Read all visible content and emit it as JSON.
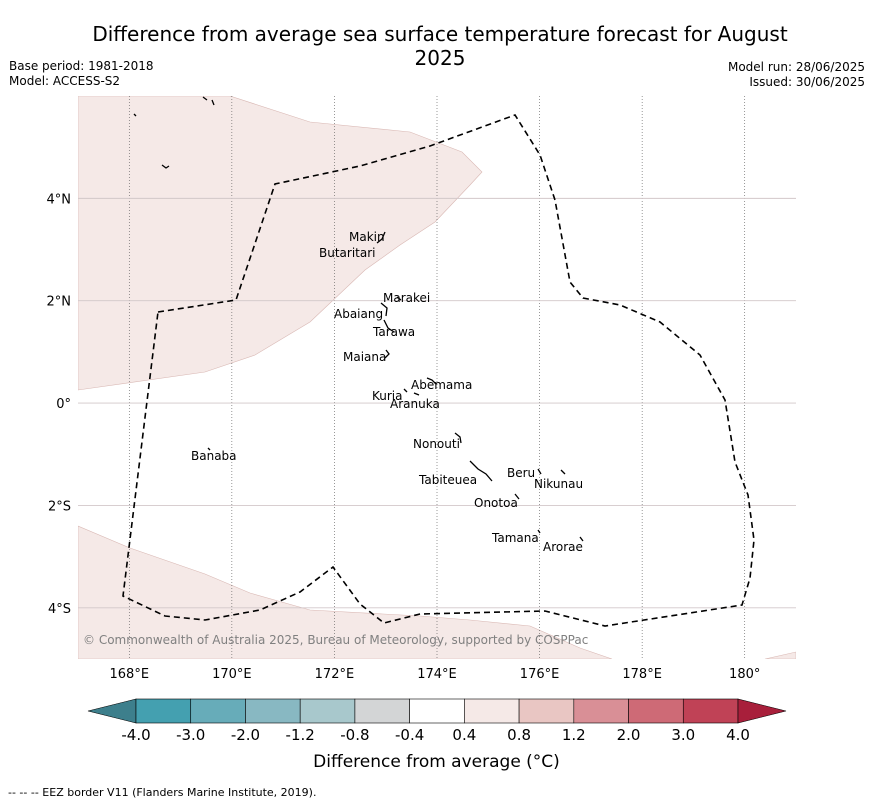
{
  "title": "Difference from average sea surface temperature forecast for August 2025",
  "base_period": "Base period: 1981-2018",
  "model": "Model: ACCESS-S2",
  "model_run": "Model run: 28/06/2025",
  "issued": "Issued: 30/06/2025",
  "copyright": "© Commonwealth of Australia 2025, Bureau of Meteorology, supported by COSPPac",
  "footer": "--  --  -- EEZ border V11 (Flanders Marine Institute, 2019).",
  "map": {
    "lon_range": [
      167,
      181
    ],
    "lat_range": [
      -5,
      6
    ],
    "lon_ticks": [
      {
        "lon": 168,
        "label": "168°E"
      },
      {
        "lon": 170,
        "label": "170°E"
      },
      {
        "lon": 172,
        "label": "172°E"
      },
      {
        "lon": 174,
        "label": "174°E"
      },
      {
        "lon": 176,
        "label": "176°E"
      },
      {
        "lon": 178,
        "label": "178°E"
      },
      {
        "lon": 180,
        "label": "180°"
      }
    ],
    "lat_ticks": [
      {
        "lat": 4,
        "label": "4°N"
      },
      {
        "lat": 2,
        "label": "2°N"
      },
      {
        "lat": 0,
        "label": "0°"
      },
      {
        "lat": -2,
        "label": "2°S"
      },
      {
        "lat": -4,
        "label": "4°S"
      }
    ],
    "anomaly_fill_color": "#f5e9e7",
    "anomaly_class": "0.4 to 0.8",
    "islands": [
      {
        "name": "Makin",
        "lon": 172.9,
        "lat": 3.2
      },
      {
        "name": "Butaritari",
        "lon": 172.8,
        "lat": 3.1
      },
      {
        "name": "Marakei",
        "lon": 173.3,
        "lat": 2.0
      },
      {
        "name": "Abaiang",
        "lon": 172.9,
        "lat": 1.8
      },
      {
        "name": "Tarawa",
        "lon": 173.0,
        "lat": 1.4
      },
      {
        "name": "Maiana",
        "lon": 173.0,
        "lat": 1.0
      },
      {
        "name": "Abemama",
        "lon": 173.9,
        "lat": 0.4
      },
      {
        "name": "Kuria",
        "lon": 173.4,
        "lat": 0.2
      },
      {
        "name": "Aranuka",
        "lon": 173.6,
        "lat": 0.2
      },
      {
        "name": "Banaba",
        "lon": 169.5,
        "lat": -0.9
      },
      {
        "name": "Nonouti",
        "lon": 174.4,
        "lat": -0.7
      },
      {
        "name": "Tabiteuea",
        "lon": 174.8,
        "lat": -1.3
      },
      {
        "name": "Beru",
        "lon": 176.0,
        "lat": -1.3
      },
      {
        "name": "Nikunau",
        "lon": 176.4,
        "lat": -1.4
      },
      {
        "name": "Onotoa",
        "lon": 175.6,
        "lat": -1.8
      },
      {
        "name": "Tamana",
        "lon": 176.0,
        "lat": -2.5
      },
      {
        "name": "Arorae",
        "lon": 176.8,
        "lat": -2.6
      }
    ]
  },
  "colorbar": {
    "label": "Difference from average (°C)",
    "tick_labels": [
      "-4.0",
      "-3.0",
      "-2.0",
      "-1.2",
      "-0.8",
      "-0.4",
      "0.4",
      "0.8",
      "1.2",
      "2.0",
      "3.0",
      "4.0"
    ],
    "under_color": "#3d7f8c",
    "over_color": "#a81f3b",
    "colors": [
      "#44a0b0",
      "#67acb9",
      "#88b8c2",
      "#a8c8cc",
      "#d3d5d6",
      "#ffffff",
      "#f5e9e7",
      "#e9c6c3",
      "#d98f96",
      "#ce6a76",
      "#c04256"
    ]
  }
}
